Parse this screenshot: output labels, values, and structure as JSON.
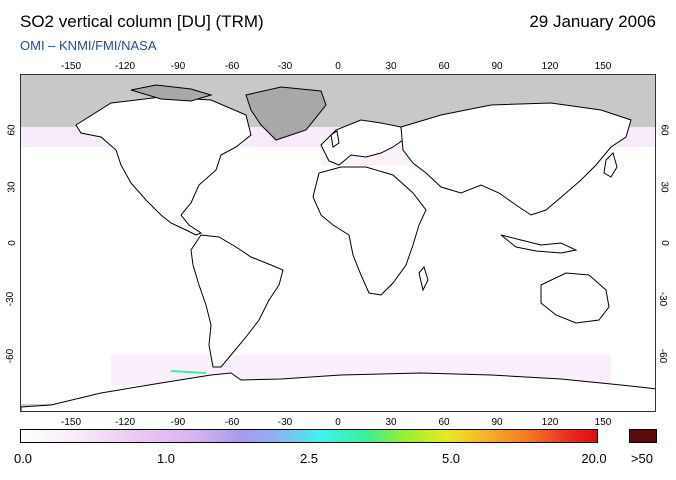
{
  "header": {
    "title": "SO2 vertical column [DU] (TRM)",
    "date": "29 January 2006",
    "source": "OMI  –  KNMI/FMI/NASA"
  },
  "axes": {
    "lon_ticks_top": [
      "-150",
      "-120",
      "-90",
      "-60",
      "-30",
      "0",
      "30",
      "60",
      "90",
      "120",
      "150"
    ],
    "lon_ticks_bottom": [
      "-150",
      "-120",
      "-90",
      "-60",
      "-30",
      "0",
      "30",
      "60",
      "90",
      "120",
      "150"
    ],
    "lat_ticks_left": [
      "60",
      "30",
      "0",
      "-30",
      "-60"
    ],
    "lat_ticks_right": [
      "60",
      "30",
      "0",
      "-30",
      "-60"
    ]
  },
  "color_scale": {
    "labels": [
      "0.0",
      "1.0",
      "2.5",
      "5.0",
      "20.0"
    ],
    "overflow_label": ">50",
    "colors": [
      "#ffffff",
      "#ecc9f2",
      "#a99bea",
      "#3ff2f0",
      "#8ff038",
      "#e9ea1c",
      "#f37a23",
      "#e00b10"
    ],
    "overflow_color": "#5a0a0a",
    "no_data_color": "#c8c8c8"
  }
}
